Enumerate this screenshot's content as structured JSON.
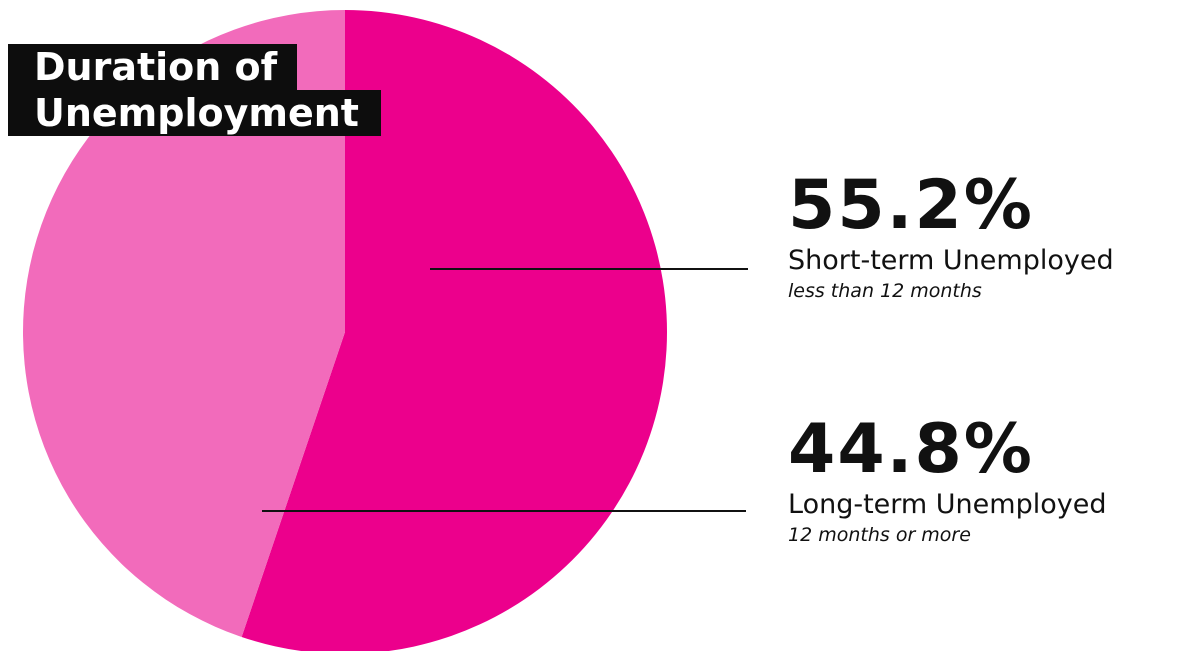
{
  "title": {
    "line1": "Duration of",
    "line2": "Unemployment"
  },
  "colors": {
    "short_term": "#ec008c",
    "long_term": "#f26bbb",
    "title_bg": "#0d0d0d",
    "leader_line": "#111111"
  },
  "chart_data": {
    "type": "pie",
    "title": "Duration of Unemployment",
    "slices": [
      {
        "percent_label": "55.2%",
        "label": "Short-term Unemployed",
        "sublabel": "less than 12 months",
        "value": 55.2,
        "color": "#ec008c"
      },
      {
        "percent_label": "44.8%",
        "label": "Long-term Unemployed",
        "sublabel": "12 months or more",
        "value": 44.8,
        "color": "#f26bbb"
      }
    ]
  }
}
